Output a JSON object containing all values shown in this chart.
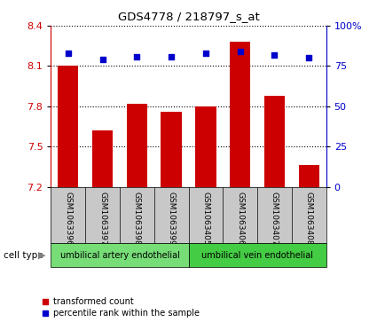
{
  "title": "GDS4778 / 218797_s_at",
  "samples": [
    "GSM1063396",
    "GSM1063397",
    "GSM1063398",
    "GSM1063399",
    "GSM1063405",
    "GSM1063406",
    "GSM1063407",
    "GSM1063408"
  ],
  "bar_values": [
    8.1,
    7.62,
    7.82,
    7.76,
    7.8,
    8.28,
    7.88,
    7.36
  ],
  "dot_values": [
    83,
    79,
    81,
    81,
    83,
    84,
    82,
    80
  ],
  "ylim_left": [
    7.2,
    8.4
  ],
  "ylim_right": [
    0,
    100
  ],
  "yticks_left": [
    7.2,
    7.5,
    7.8,
    8.1,
    8.4
  ],
  "yticks_right": [
    0,
    25,
    50,
    75,
    100
  ],
  "bar_color": "#cc0000",
  "dot_color": "#0000cc",
  "group1_label": "umbilical artery endothelial",
  "group2_label": "umbilical vein endothelial",
  "group1_indices": [
    0,
    1,
    2,
    3
  ],
  "group2_indices": [
    4,
    5,
    6,
    7
  ],
  "cell_type_label": "cell type",
  "legend_bar_label": "transformed count",
  "legend_dot_label": "percentile rank within the sample",
  "background_color": "#ffffff",
  "tick_area_color": "#c8c8c8",
  "group_box_color": "#77dd77",
  "group2_box_color": "#44cc44"
}
